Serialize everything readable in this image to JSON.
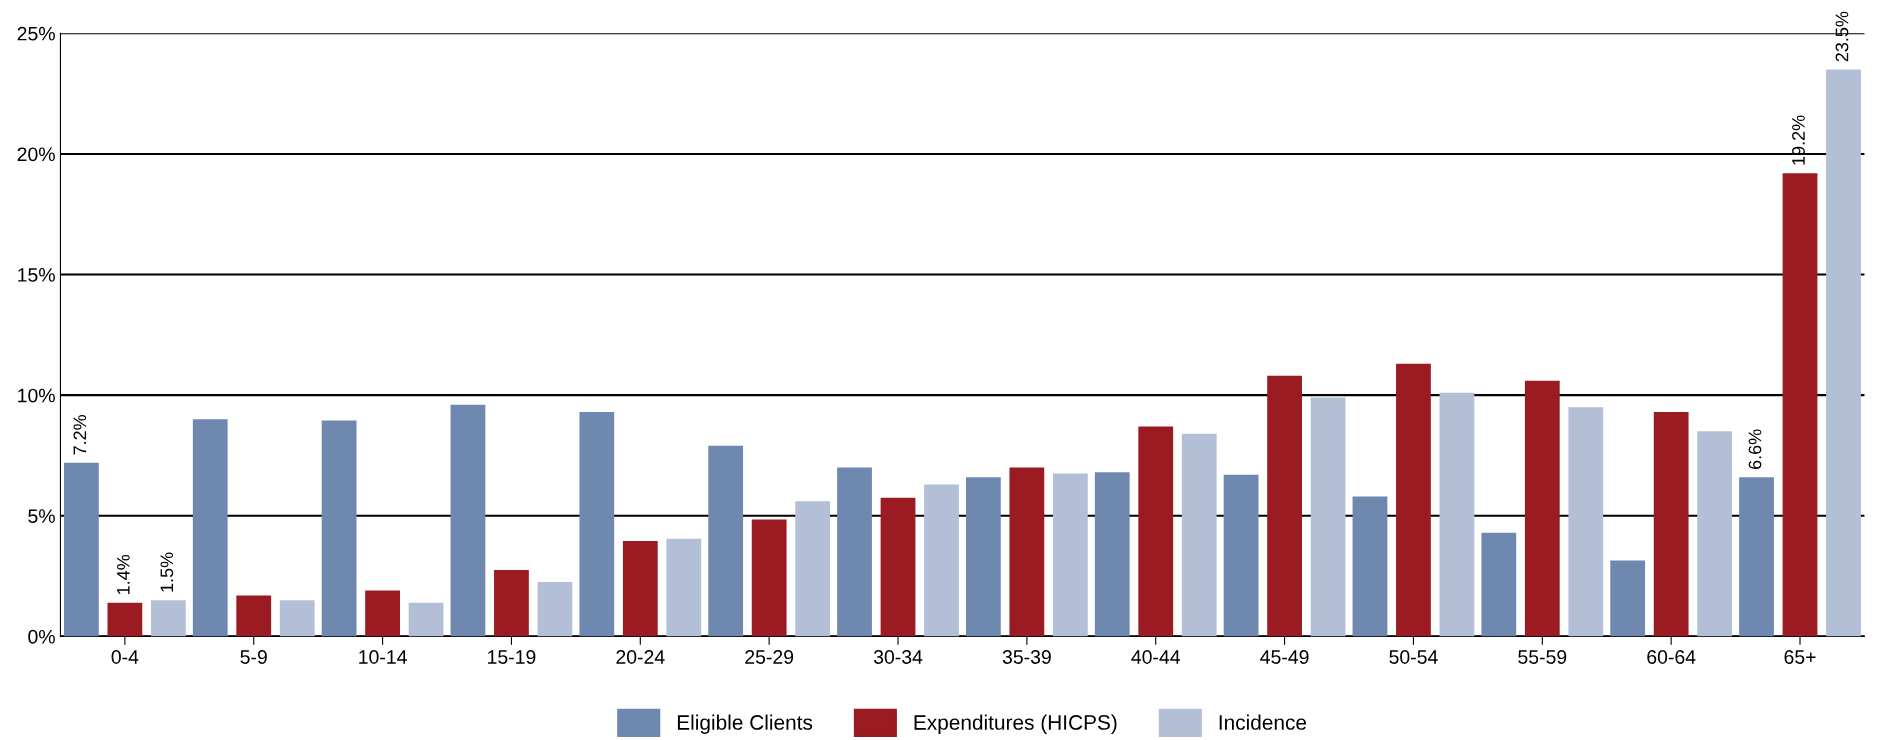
{
  "chart_data": {
    "type": "bar",
    "categories": [
      "0-4",
      "5-9",
      "10-14",
      "15-19",
      "20-24",
      "25-29",
      "30-34",
      "35-39",
      "40-44",
      "45-49",
      "50-54",
      "55-59",
      "60-64",
      "65+"
    ],
    "series": [
      {
        "name": "Eligible Clients",
        "color": "#6e88b0",
        "values": [
          7.2,
          9.0,
          8.95,
          9.6,
          9.3,
          7.9,
          7.0,
          6.6,
          6.8,
          6.7,
          5.8,
          4.3,
          3.15,
          6.6
        ],
        "value_labels": [
          "7.2%",
          null,
          null,
          null,
          null,
          null,
          null,
          null,
          null,
          null,
          null,
          null,
          null,
          "6.6%"
        ]
      },
      {
        "name": "Expenditures (HICPS)",
        "color": "#9b1b22",
        "values": [
          1.4,
          1.7,
          1.9,
          2.75,
          3.95,
          4.85,
          5.75,
          7.0,
          8.7,
          10.8,
          11.3,
          10.6,
          9.3,
          19.2
        ],
        "value_labels": [
          "1.4%",
          null,
          null,
          null,
          null,
          null,
          null,
          null,
          null,
          null,
          null,
          null,
          null,
          "19.2%"
        ]
      },
      {
        "name": "Incidence",
        "color": "#b3bfd6",
        "values": [
          1.5,
          1.5,
          1.4,
          2.25,
          4.05,
          5.6,
          6.3,
          6.75,
          8.4,
          9.9,
          10.1,
          9.5,
          8.5,
          23.5
        ],
        "value_labels": [
          "1.5%",
          null,
          null,
          null,
          null,
          null,
          null,
          null,
          null,
          null,
          null,
          null,
          null,
          "23.5%"
        ]
      }
    ],
    "ylim": [
      0,
      25
    ],
    "yticks": [
      {
        "value": 0,
        "label": "0%"
      },
      {
        "value": 5,
        "label": "5%"
      },
      {
        "value": 10,
        "label": "10%"
      },
      {
        "value": 15,
        "label": "15%"
      },
      {
        "value": 20,
        "label": "20%"
      },
      {
        "value": 25,
        "label": "25%"
      }
    ],
    "grid": "y",
    "legend": "bottom"
  }
}
